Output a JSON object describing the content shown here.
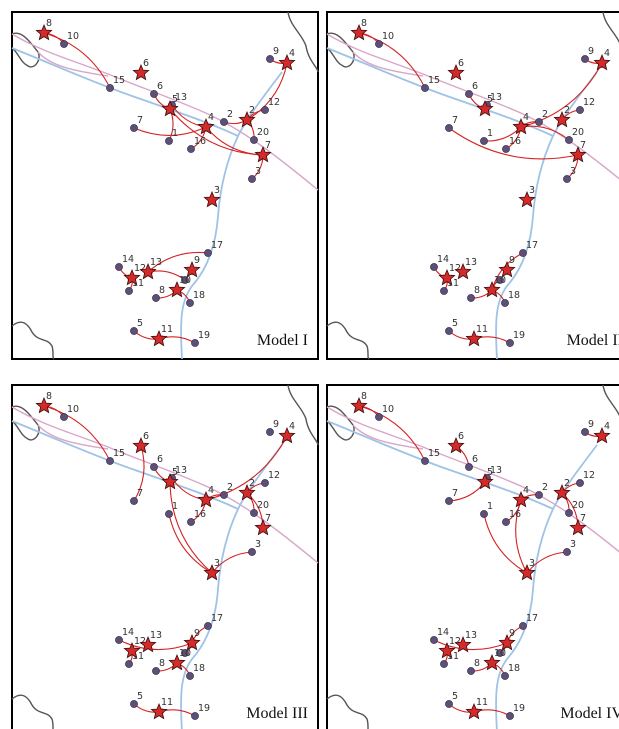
{
  "colors": {
    "frame": "#000000",
    "river": "#9fc3e6",
    "road": "#d9a6c8",
    "coast": "#555555",
    "site": "#5c4f78",
    "hub": "#d42a2a",
    "flow": "#d42222"
  },
  "legend_icons": {
    "site": "circle-marker",
    "hub": "star-marker"
  },
  "sites": [
    {
      "id": 8,
      "label": "8"
    },
    {
      "id": 10,
      "label": "10"
    },
    {
      "id": 15,
      "label": "15"
    },
    {
      "id": 6,
      "label": "6"
    },
    {
      "id": 13,
      "label": "13"
    },
    {
      "id": 9,
      "label": "9"
    },
    {
      "id": 12,
      "label": "12"
    },
    {
      "id": 7,
      "label": "7"
    },
    {
      "id": 2,
      "label": "2"
    },
    {
      "id": 20,
      "label": "20"
    },
    {
      "id": 1,
      "label": "1"
    },
    {
      "id": 16,
      "label": "16"
    },
    {
      "id": 3,
      "label": "3"
    },
    {
      "id": 17,
      "label": "17"
    },
    {
      "id": 14,
      "label": "14"
    },
    {
      "id": 11,
      "label": "11"
    },
    {
      "id": 4,
      "label": "4"
    },
    {
      "id": 18,
      "label": "18"
    },
    {
      "id": 5,
      "label": "5"
    },
    {
      "id": 19,
      "label": "19"
    }
  ],
  "panels": [
    {
      "name": "Model I",
      "hubs": [
        "s8",
        "p6",
        "p5",
        "p4",
        "p9b",
        "p22",
        "p21",
        "p3",
        "p11",
        "p12",
        "p14",
        "p10",
        "p19"
      ],
      "flows": [
        [
          "s10",
          "s8"
        ],
        [
          "s15",
          "s8"
        ],
        [
          "s6",
          "p5"
        ],
        [
          "s13",
          "p4"
        ],
        [
          "s7",
          "p4"
        ],
        [
          "s1",
          "p5"
        ],
        [
          "s16",
          "p4"
        ],
        [
          "s2",
          "p22"
        ],
        [
          "s12",
          "p22"
        ],
        [
          "s20",
          "p22"
        ],
        [
          "s9",
          "p9b"
        ],
        [
          "s3",
          "p21"
        ],
        [
          "s17",
          "p14"
        ],
        [
          "s14",
          "p12"
        ],
        [
          "s11",
          "p12"
        ],
        [
          "s4",
          "p14"
        ],
        [
          "s8b",
          "p10"
        ],
        [
          "s18",
          "p10"
        ],
        [
          "s5",
          "p19"
        ],
        [
          "s19",
          "p19"
        ],
        [
          "p22",
          "p9b"
        ],
        [
          "p5",
          "p21"
        ],
        [
          "p4",
          "p21"
        ]
      ]
    },
    {
      "name": "Model II",
      "hubs": [
        "s8",
        "p6",
        "p5",
        "p4",
        "p9b",
        "p22",
        "p21",
        "p3",
        "p11",
        "p12",
        "p14",
        "p10",
        "p19"
      ],
      "flows": [
        [
          "s10",
          "s8"
        ],
        [
          "s15",
          "s8"
        ],
        [
          "s6",
          "p5"
        ],
        [
          "s13",
          "p5"
        ],
        [
          "s7",
          "p21"
        ],
        [
          "s1",
          "p4"
        ],
        [
          "s16",
          "p4"
        ],
        [
          "s2",
          "p4"
        ],
        [
          "s12",
          "p22"
        ],
        [
          "s20",
          "p4"
        ],
        [
          "p4",
          "p9b"
        ],
        [
          "s9",
          "p9b"
        ],
        [
          "s3",
          "p21"
        ],
        [
          "s17",
          "p10"
        ],
        [
          "s14",
          "p12"
        ],
        [
          "s11",
          "p12"
        ],
        [
          "s4",
          "p10"
        ],
        [
          "s8b",
          "p10"
        ],
        [
          "s18",
          "p10"
        ],
        [
          "s5",
          "p19"
        ],
        [
          "s19",
          "p19"
        ]
      ]
    },
    {
      "name": "Model III",
      "hubs": [
        "s8",
        "p6",
        "p5",
        "p4",
        "p9b",
        "p22",
        "p21",
        "p3",
        "p11",
        "p12",
        "p14",
        "p10",
        "p19"
      ],
      "flows": [
        [
          "s10",
          "s8"
        ],
        [
          "s15",
          "s8"
        ],
        [
          "s7",
          "p6"
        ],
        [
          "s6",
          "p5"
        ],
        [
          "s13",
          "p4"
        ],
        [
          "s1",
          "p3"
        ],
        [
          "s16",
          "p4"
        ],
        [
          "s2",
          "p4"
        ],
        [
          "s12",
          "p22"
        ],
        [
          "s20",
          "p22"
        ],
        [
          "p4",
          "p9b"
        ],
        [
          "s3",
          "p3"
        ],
        [
          "p21",
          "p22"
        ],
        [
          "s17",
          "p11"
        ],
        [
          "s14",
          "p11"
        ],
        [
          "s11",
          "p12"
        ],
        [
          "s4",
          "p11"
        ],
        [
          "s8b",
          "p10"
        ],
        [
          "s18",
          "p10"
        ],
        [
          "s5",
          "p19"
        ],
        [
          "s19",
          "p19"
        ],
        [
          "p5",
          "p3"
        ]
      ]
    },
    {
      "name": "Model IV",
      "hubs": [
        "s8",
        "p6",
        "p5",
        "p4",
        "p9b",
        "p22",
        "p21",
        "p3",
        "p11",
        "p12",
        "p14",
        "p10",
        "p19"
      ],
      "flows": [
        [
          "s10",
          "s8"
        ],
        [
          "s15",
          "s8"
        ],
        [
          "s6",
          "p6"
        ],
        [
          "s13",
          "p5"
        ],
        [
          "s7",
          "p5"
        ],
        [
          "s1",
          "p3"
        ],
        [
          "s16",
          "p4"
        ],
        [
          "s2",
          "p4"
        ],
        [
          "s12",
          "p22"
        ],
        [
          "s20",
          "p22"
        ],
        [
          "s9",
          "p9b"
        ],
        [
          "s3",
          "p3"
        ],
        [
          "p4",
          "p3"
        ],
        [
          "s17",
          "p11"
        ],
        [
          "s14",
          "p11"
        ],
        [
          "s11",
          "p12"
        ],
        [
          "s4",
          "p11"
        ],
        [
          "s8b",
          "p10"
        ],
        [
          "s18",
          "p10"
        ],
        [
          "s5",
          "p19"
        ],
        [
          "s19",
          "p19"
        ],
        [
          "p21",
          "p22"
        ]
      ]
    }
  ]
}
